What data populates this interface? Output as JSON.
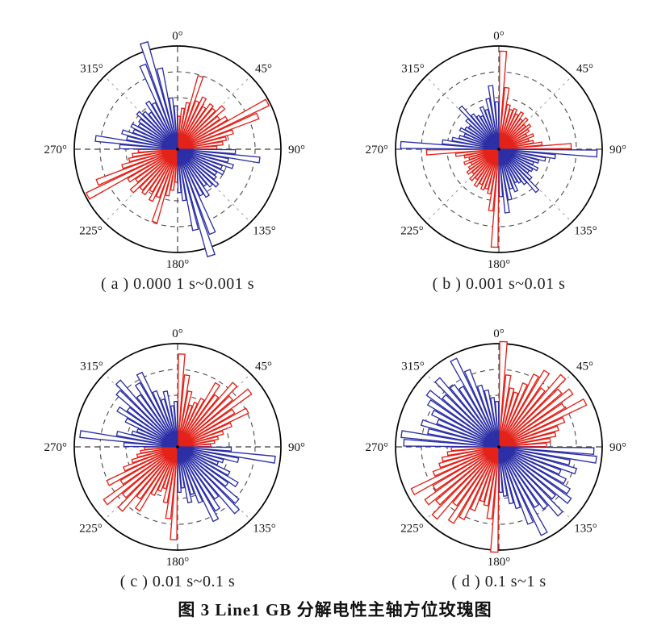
{
  "figure": {
    "main_caption": "图 3  Line1 GB 分解电性主轴方位玫瑰图"
  },
  "colors": {
    "red_series": "#e32219",
    "blue_series": "#2c2fa6",
    "grid_circle": "#4a4a4a",
    "spoke_major": "#3c3c3c",
    "spoke_minor": "#9a9a9a",
    "outer_circle": "#000000",
    "label_text": "#111111",
    "background": "#ffffff"
  },
  "rose": {
    "bin_width_deg": 5,
    "grid_circle_radii": [
      0.25,
      0.5,
      0.75
    ],
    "spoke_angles_deg": [
      0,
      45,
      90,
      135,
      180,
      225,
      270,
      315
    ],
    "angle_tick_labels": [
      "0°",
      "45°",
      "90°",
      "135°",
      "180°",
      "225°",
      "270°",
      "315°"
    ]
  },
  "chart_data": [
    {
      "id": "a",
      "type": "polar_bar_histogram",
      "caption": "( a ) 0.000 1 s~0.001 s",
      "bin_width_deg": 5,
      "symmetry_deg": 180,
      "rlim": [
        0,
        1
      ],
      "series": [
        {
          "name": "red-strike",
          "color": "#e32219",
          "start_deg": 0,
          "quadrants_deg": [
            [
              0,
              90
            ],
            [
              180,
              270
            ]
          ],
          "values": [
            0.32,
            0.4,
            0.46,
            0.74,
            0.5,
            0.56,
            0.48,
            0.54,
            0.52,
            0.6,
            0.5,
            0.56,
            0.98,
            0.84,
            0.56,
            0.48,
            0.44,
            0.38
          ]
        },
        {
          "name": "blue-strike",
          "color": "#2c2fa6",
          "start_deg": 90,
          "quadrants_deg": [
            [
              90,
              180
            ],
            [
              270,
              360
            ]
          ],
          "values": [
            0.56,
            0.8,
            0.5,
            0.56,
            0.46,
            0.5,
            0.44,
            0.46,
            0.52,
            0.48,
            0.44,
            0.54,
            0.5,
            0.88,
            1.08,
            0.8,
            0.5,
            0.42
          ]
        }
      ]
    },
    {
      "id": "b",
      "type": "polar_bar_histogram",
      "caption": "( b ) 0.001 s~0.01 s",
      "bin_width_deg": 5,
      "symmetry_deg": 180,
      "rlim": [
        0,
        1
      ],
      "series": [
        {
          "name": "red-strike",
          "color": "#e32219",
          "start_deg": 0,
          "quadrants_deg": [
            [
              0,
              90
            ],
            [
              180,
              270
            ]
          ],
          "values": [
            0.95,
            0.6,
            0.44,
            0.4,
            0.42,
            0.38,
            0.42,
            0.36,
            0.4,
            0.34,
            0.38,
            0.34,
            0.3,
            0.36,
            0.3,
            0.34,
            0.42,
            0.7
          ]
        },
        {
          "name": "blue-strike",
          "color": "#2c2fa6",
          "start_deg": 90,
          "quadrants_deg": [
            [
              90,
              180
            ],
            [
              270,
              360
            ]
          ],
          "values": [
            0.95,
            0.55,
            0.46,
            0.4,
            0.36,
            0.42,
            0.38,
            0.36,
            0.42,
            0.55,
            0.42,
            0.38,
            0.36,
            0.44,
            0.4,
            0.5,
            0.62,
            0.46
          ]
        }
      ]
    },
    {
      "id": "c",
      "type": "polar_bar_histogram",
      "caption": "( c ) 0.01 s~0.1 s",
      "bin_width_deg": 5,
      "symmetry_deg": 180,
      "rlim": [
        0,
        1
      ],
      "series": [
        {
          "name": "red-strike",
          "color": "#e32219",
          "start_deg": 0,
          "quadrants_deg": [
            [
              0,
              90
            ],
            [
              180,
              270
            ]
          ],
          "values": [
            0.9,
            0.7,
            0.55,
            0.42,
            0.46,
            0.52,
            0.72,
            0.62,
            0.82,
            0.7,
            0.88,
            0.64,
            0.76,
            0.56,
            0.46,
            0.4,
            0.36,
            0.32
          ]
        },
        {
          "name": "blue-strike",
          "color": "#2c2fa6",
          "start_deg": 90,
          "quadrants_deg": [
            [
              90,
              180
            ],
            [
              270,
              360
            ]
          ],
          "values": [
            0.52,
            0.95,
            0.6,
            0.46,
            0.42,
            0.56,
            0.68,
            0.6,
            0.78,
            0.85,
            0.62,
            0.72,
            0.8,
            0.58,
            0.48,
            0.55,
            0.4,
            0.44
          ]
        }
      ]
    },
    {
      "id": "d",
      "type": "polar_bar_histogram",
      "caption": "( d ) 0.1 s~1 s",
      "bin_width_deg": 5,
      "symmetry_deg": 180,
      "rlim": [
        0,
        1
      ],
      "series": [
        {
          "name": "red-strike",
          "color": "#e32219",
          "start_deg": 0,
          "quadrants_deg": [
            [
              0,
              90
            ],
            [
              180,
              270
            ]
          ],
          "values": [
            1.02,
            0.7,
            0.58,
            0.55,
            0.66,
            0.78,
            0.86,
            0.7,
            0.92,
            0.8,
            0.88,
            0.74,
            0.94,
            0.68,
            0.6,
            0.56,
            0.5,
            0.46
          ]
        },
        {
          "name": "blue-strike",
          "color": "#2c2fa6",
          "start_deg": 90,
          "quadrants_deg": [
            [
              90,
              180
            ],
            [
              270,
              360
            ]
          ],
          "values": [
            0.92,
            0.95,
            0.7,
            0.78,
            0.64,
            0.72,
            0.8,
            0.86,
            0.72,
            0.88,
            0.74,
            0.68,
            0.95,
            0.8,
            0.62,
            0.56,
            0.48,
            0.44
          ]
        }
      ]
    }
  ]
}
